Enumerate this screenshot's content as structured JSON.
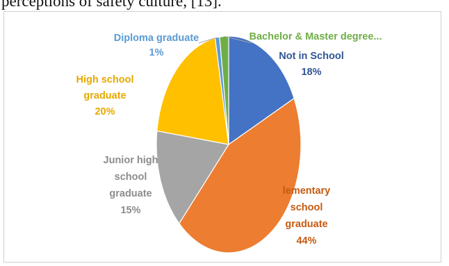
{
  "top_text": "perceptions of safety culture, [13].",
  "chart_data": {
    "type": "pie",
    "title": "",
    "slices": [
      {
        "name": "Not in School",
        "label": "Not in School",
        "value": 18,
        "pct_label": "18%",
        "color": "#4472C4",
        "label_color": "#2F5597"
      },
      {
        "name": "Elementary school graduate",
        "label": "lementary school graduate",
        "value": 44,
        "pct_label": "44%",
        "color": "#ED7D31",
        "label_color": "#C55A11"
      },
      {
        "name": "Junior high school graduate",
        "label": "Junior high school graduate",
        "value": 15,
        "pct_label": "15%",
        "color": "#A5A5A5",
        "label_color": "#8C8C8C"
      },
      {
        "name": "High school graduate",
        "label": "High school graduate",
        "value": 20,
        "pct_label": "20%",
        "color": "#FFC000",
        "label_color": "#E6A800"
      },
      {
        "name": "Diploma graduate",
        "label": "Diploma graduate",
        "value": 1,
        "pct_label": "1%",
        "color": "#5B9BD5",
        "label_color": "#5B9BD5"
      },
      {
        "name": "Bachelor & Master degree...",
        "label": "Bachelor & Master degree...",
        "value": 2,
        "pct_label": "",
        "color": "#70AD47",
        "label_color": "#70AD47"
      }
    ]
  }
}
